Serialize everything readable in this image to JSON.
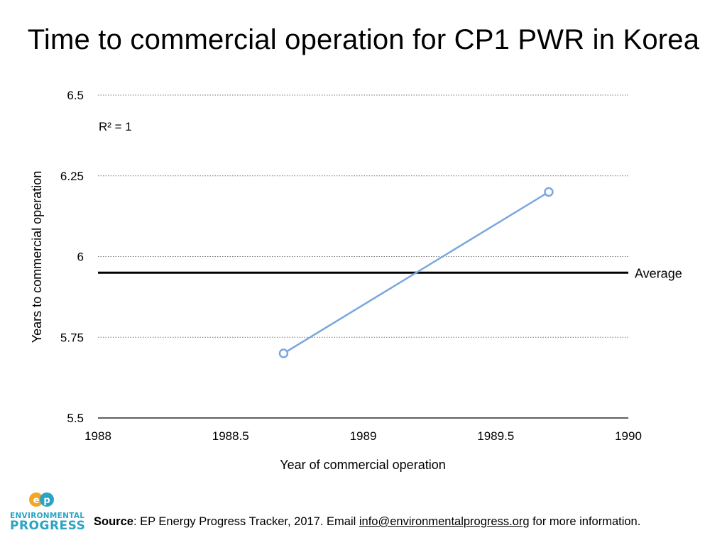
{
  "title": "Time to commercial operation for CP1 PWR in Korea",
  "chart_data": {
    "type": "line",
    "xlabel": "Year of commercial operation",
    "ylabel": "Years to commercial operation",
    "xlim": [
      1988,
      1990
    ],
    "ylim": [
      5.5,
      6.5
    ],
    "x_ticks": [
      "1988",
      "1988.5",
      "1989",
      "1989.5",
      "1990"
    ],
    "y_ticks": [
      "6.5",
      "6.25",
      "6",
      "5.75",
      "5.5"
    ],
    "grid": true,
    "series": [
      {
        "x": [
          1988.7,
          1989.7
        ],
        "y": [
          5.7,
          6.2
        ],
        "color": "#7ba7e0"
      }
    ],
    "average": {
      "label": "Average",
      "value": 5.95,
      "color": "#000000"
    },
    "annotation": "R² = 1"
  },
  "footer": {
    "source_label": "Source",
    "source_text": ": EP Energy Progress Tracker, 2017. Email ",
    "email": "info@environmentalprogress.org",
    "suffix": " for more information."
  },
  "logo": {
    "mark": "EP",
    "line1": "ENVIRONMENTAL",
    "line2": "PROGRESS",
    "colors": [
      "#f5a623",
      "#2aa4c4"
    ]
  }
}
